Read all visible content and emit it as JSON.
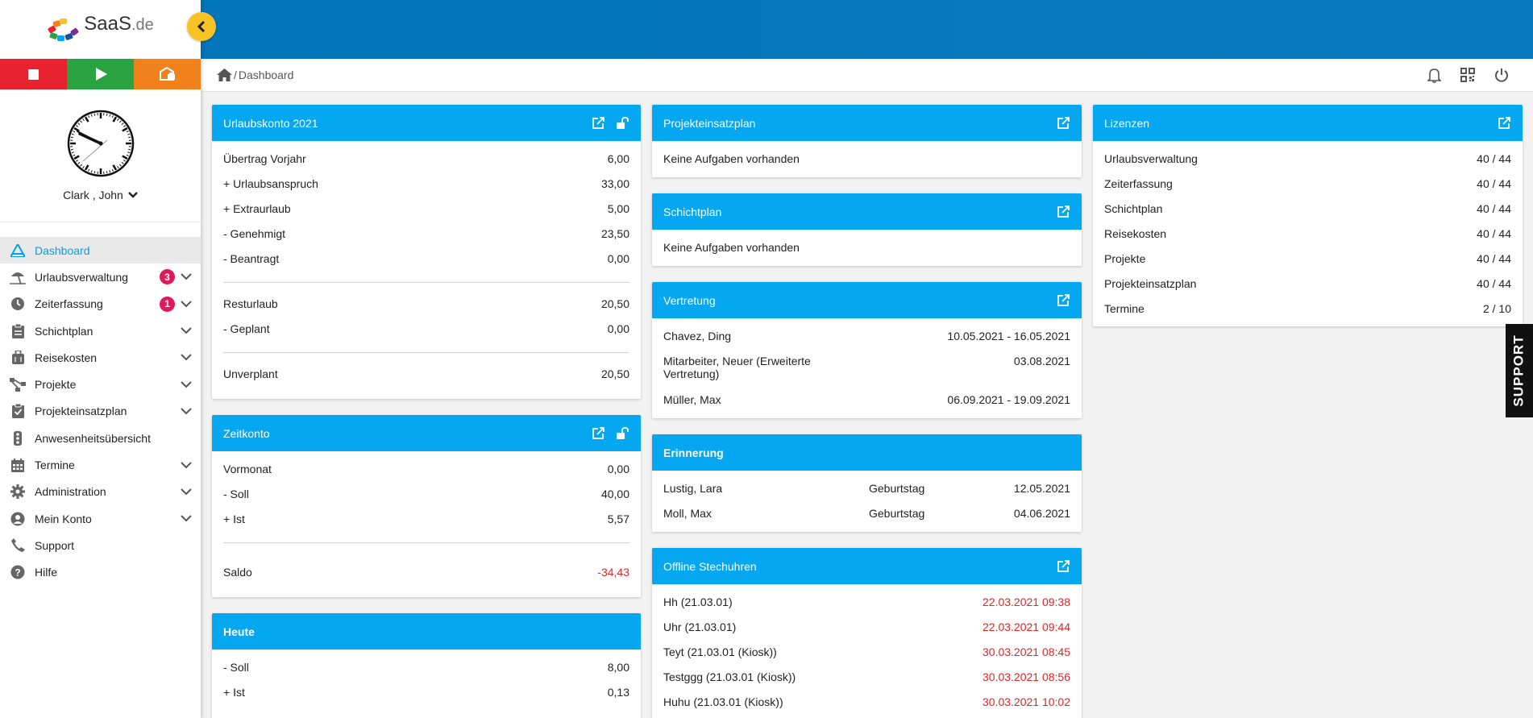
{
  "logo": {
    "brand": "SaaS",
    "tld": ".de"
  },
  "user": {
    "name": "Clark , John"
  },
  "nav": [
    {
      "label": "Dashboard"
    },
    {
      "label": "Urlaubsverwaltung",
      "badge": "3"
    },
    {
      "label": "Zeiterfassung",
      "badge": "1"
    },
    {
      "label": "Schichtplan"
    },
    {
      "label": "Reisekosten"
    },
    {
      "label": "Projekte"
    },
    {
      "label": "Projekteinsatzplan"
    },
    {
      "label": "Anwesenheitsübersicht"
    },
    {
      "label": "Termine"
    },
    {
      "label": "Administration"
    },
    {
      "label": "Mein Konto"
    },
    {
      "label": "Support"
    },
    {
      "label": "Hilfe"
    }
  ],
  "breadcrumb": {
    "sep": "/",
    "page": "Dashboard"
  },
  "support_tab": "SUPPORT",
  "colors": {
    "accent": "#04a7f0",
    "topbar": "#0275bb",
    "stop": "#e8232f",
    "play": "#2aa442",
    "other": "#f0811d",
    "collapse": "#f7c325",
    "badge": "#e0195b",
    "negative": "#e02525"
  },
  "urlaub": {
    "title": "Urlaubskonto 2021",
    "rows": [
      {
        "label": "Übertrag Vorjahr",
        "value": "6,00"
      },
      {
        "label": "+ Urlaubsanspruch",
        "value": "33,00"
      },
      {
        "label": "+ Extraurlaub",
        "value": "5,00"
      },
      {
        "label": "- Genehmigt",
        "value": "23,50"
      },
      {
        "label": "- Beantragt",
        "value": "0,00"
      }
    ],
    "rows2": [
      {
        "label": "Resturlaub",
        "value": "20,50"
      },
      {
        "label": "- Geplant",
        "value": "0,00"
      }
    ],
    "final": {
      "label": "Unverplant",
      "value": "20,50"
    }
  },
  "zeitkonto": {
    "title": "Zeitkonto",
    "rows": [
      {
        "label": "Vormonat",
        "value": "0,00"
      },
      {
        "label": "- Soll",
        "value": "40,00"
      },
      {
        "label": "+ Ist",
        "value": "5,57"
      }
    ],
    "final": {
      "label": "Saldo",
      "value": "-34,43"
    }
  },
  "heute": {
    "title": "Heute",
    "rows": [
      {
        "label": "- Soll",
        "value": "8,00"
      },
      {
        "label": "+ Ist",
        "value": "0,13"
      }
    ]
  },
  "projekteinsatz": {
    "title": "Projekteinsatzplan",
    "empty": "Keine Aufgaben vorhanden"
  },
  "schichtplan": {
    "title": "Schichtplan",
    "empty": "Keine Aufgaben vorhanden"
  },
  "vertretung": {
    "title": "Vertretung",
    "rows": [
      {
        "name": "Chavez, Ding",
        "period": "10.05.2021 - 16.05.2021"
      },
      {
        "name": "Mitarbeiter, Neuer (Erweiterte Vertretung)",
        "period": "03.08.2021"
      },
      {
        "name": "Müller, Max",
        "period": "06.09.2021 - 19.09.2021"
      }
    ]
  },
  "erinnerung": {
    "title": "Erinnerung",
    "rows": [
      {
        "name": "Lustig, Lara",
        "type": "Geburtstag",
        "date": "12.05.2021"
      },
      {
        "name": "Moll, Max",
        "type": "Geburtstag",
        "date": "04.06.2021"
      }
    ]
  },
  "offline": {
    "title": "Offline Stechuhren",
    "rows": [
      {
        "name": "Hh (21.03.01)",
        "time": "22.03.2021 09:38"
      },
      {
        "name": "Uhr (21.03.01)",
        "time": "22.03.2021 09:44"
      },
      {
        "name": "Teyt (21.03.01 (Kiosk))",
        "time": "30.03.2021 08:45"
      },
      {
        "name": "Testggg (21.03.01 (Kiosk))",
        "time": "30.03.2021 08:56"
      },
      {
        "name": "Huhu (21.03.01 (Kiosk))",
        "time": "30.03.2021 10:02"
      }
    ]
  },
  "lizenzen": {
    "title": "Lizenzen",
    "rows": [
      {
        "label": "Urlaubsverwaltung",
        "value": "40 / 44"
      },
      {
        "label": "Zeiterfassung",
        "value": "40 / 44"
      },
      {
        "label": "Schichtplan",
        "value": "40 / 44"
      },
      {
        "label": "Reisekosten",
        "value": "40 / 44"
      },
      {
        "label": "Projekte",
        "value": "40 / 44"
      },
      {
        "label": "Projekteinsatzplan",
        "value": "40 / 44"
      },
      {
        "label": "Termine",
        "value": "2 / 10"
      }
    ]
  }
}
